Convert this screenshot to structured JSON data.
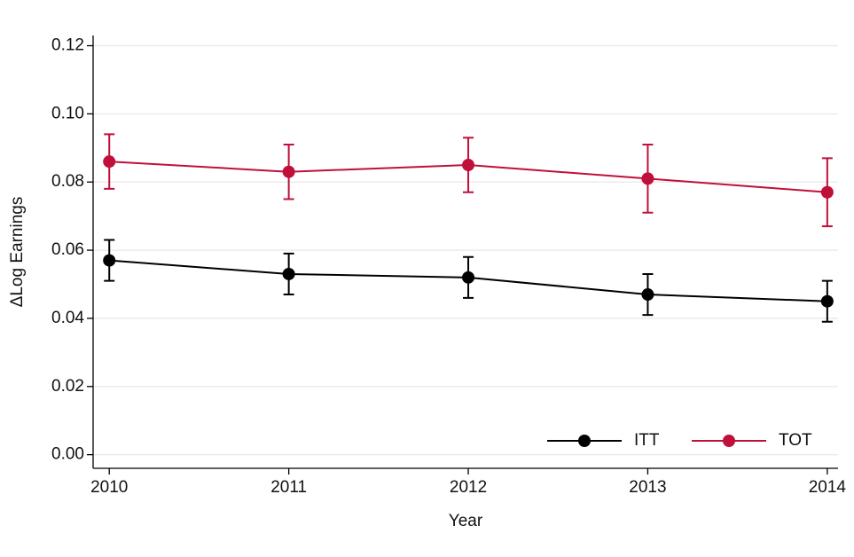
{
  "chart_data": {
    "type": "line",
    "x_label": "Year",
    "y_label": "ΔLog Earnings",
    "x": [
      2010,
      2011,
      2012,
      2013,
      2014
    ],
    "xlim": [
      2009.91,
      2014.06
    ],
    "xticks": [
      2010,
      2011,
      2012,
      2013,
      2014
    ],
    "ylim": [
      -0.004,
      0.123
    ],
    "yticks": [
      {
        "value": 0,
        "label": "0.00"
      },
      {
        "value": 0.02,
        "label": "0.02"
      },
      {
        "value": 0.04,
        "label": "0.04"
      },
      {
        "value": 0.06,
        "label": "0.06"
      },
      {
        "value": 0.08,
        "label": "0.08"
      },
      {
        "value": 0.1,
        "label": "0.10"
      },
      {
        "value": 0.12,
        "label": "0.12"
      }
    ],
    "grid": true,
    "legend": "lower right",
    "series": [
      {
        "name": "ITT",
        "color": "#000000",
        "values": [
          0.057,
          0.053,
          0.052,
          0.047,
          0.045
        ],
        "errors": [
          0.006,
          0.006,
          0.006,
          0.006,
          0.006
        ]
      },
      {
        "name": "TOT",
        "color": "#c0103a",
        "values": [
          0.086,
          0.083,
          0.085,
          0.081,
          0.077
        ],
        "errors": [
          0.008,
          0.008,
          0.008,
          0.01,
          0.01
        ]
      }
    ]
  }
}
